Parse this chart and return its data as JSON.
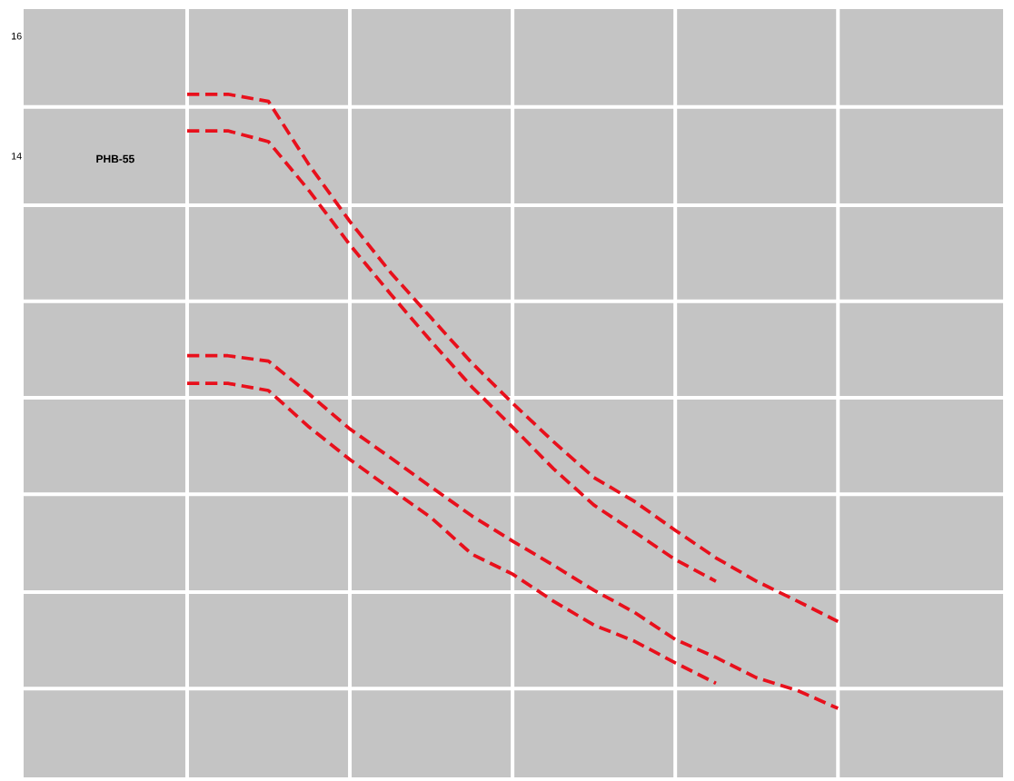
{
  "chart_data": {
    "type": "line",
    "categories": [
      null,
      null,
      null,
      null,
      null,
      null,
      null,
      null,
      null,
      null,
      null,
      null,
      null,
      null,
      null,
      null,
      null
    ],
    "series": [
      {
        "color": "#e8101c",
        "values": [
          15.03,
          15.03,
          14.91,
          13.85,
          12.91,
          12.06,
          11.3,
          10.55,
          9.88,
          9.24,
          8.64,
          8.24,
          7.76,
          7.3,
          6.91,
          6.58,
          6.24
        ]
      },
      {
        "color": "#e8101c",
        "values": [
          14.42,
          14.42,
          14.24,
          13.42,
          12.52,
          11.7,
          10.91,
          10.15,
          9.48,
          8.79,
          8.18,
          7.73,
          7.27,
          6.91,
          null,
          null,
          null
        ]
      },
      {
        "color": "#e8101c",
        "values": [
          10.67,
          10.67,
          10.58,
          10.03,
          9.45,
          8.97,
          8.48,
          8.0,
          7.58,
          7.18,
          6.76,
          6.39,
          5.94,
          5.64,
          5.3,
          5.09,
          4.79
        ]
      },
      {
        "color": "#e8101c",
        "values": [
          10.21,
          10.21,
          10.09,
          9.48,
          8.94,
          8.45,
          7.97,
          7.36,
          7.03,
          6.58,
          6.18,
          5.91,
          5.55,
          5.21,
          null,
          null,
          null
        ]
      }
    ],
    "ylim": [
      3.64,
      16.45
    ],
    "yticks": [
      16,
      14,
      {
        "value": 14.82,
        "label": null
      },
      {
        "value": 13.18,
        "label": null
      },
      {
        "value": 11.58,
        "label": null
      },
      {
        "value": 9.97,
        "label": null
      },
      {
        "value": 8.36,
        "label": null
      },
      {
        "value": 6.73,
        "label": null
      },
      {
        "value": 5.12,
        "label": null
      }
    ],
    "annotations": [
      "PHB-55"
    ],
    "grid": true,
    "marker": "none",
    "line_style": "dashed"
  }
}
